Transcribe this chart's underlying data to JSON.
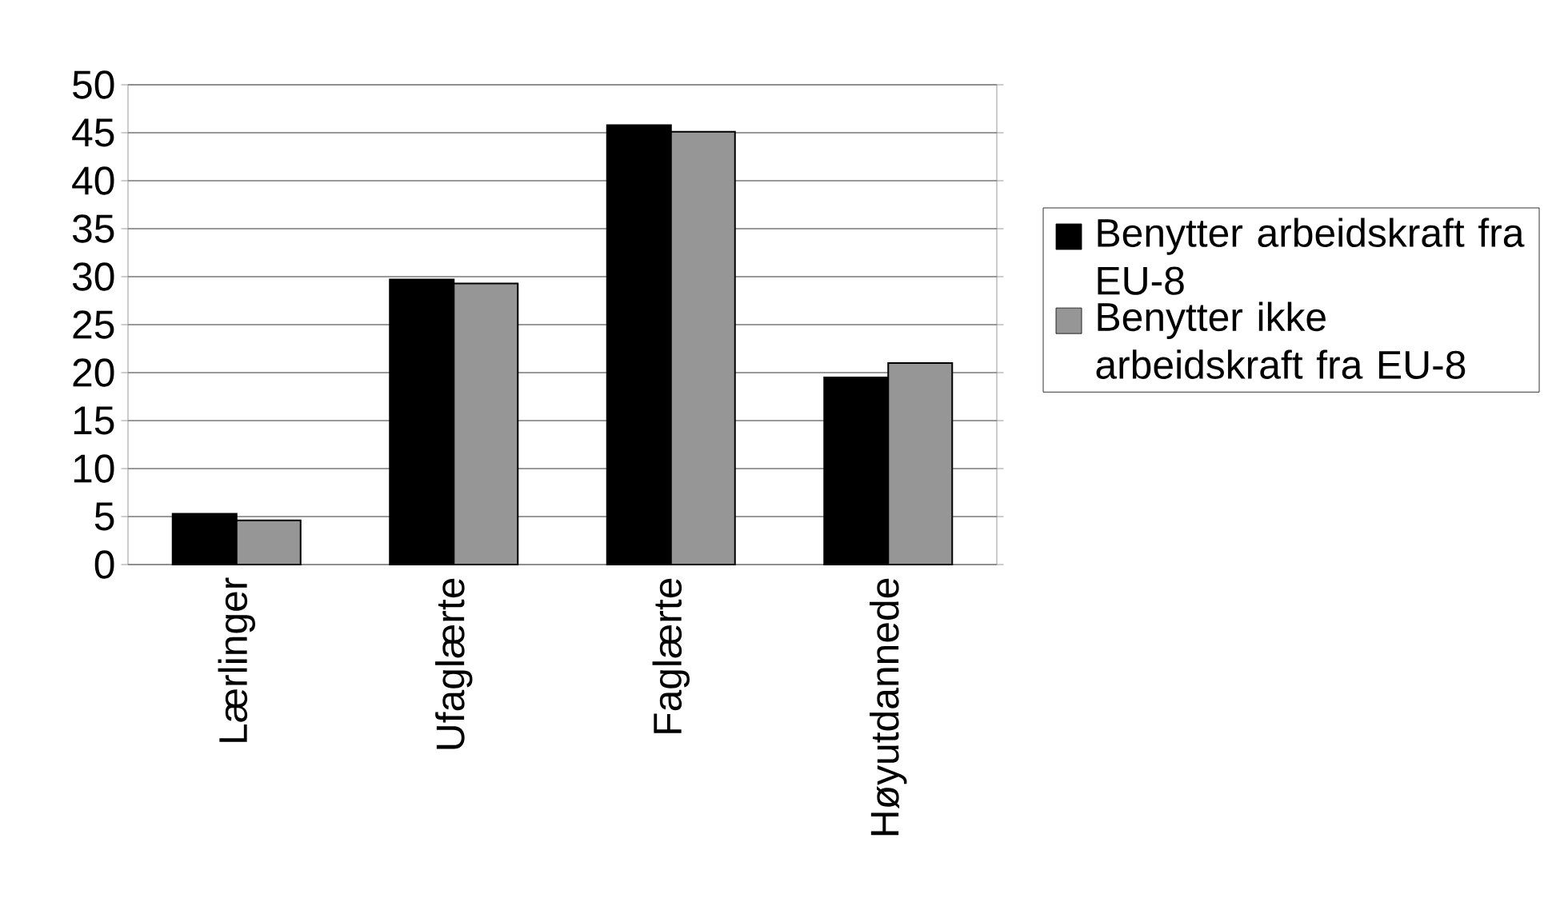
{
  "chart_data": {
    "type": "bar",
    "categories": [
      "Lærlinger",
      "Ufaglærte",
      "Faglærte",
      "Høyutdannede"
    ],
    "series": [
      {
        "name": "Benytter arbeidskraft fra EU-8",
        "color": "#000000",
        "values": [
          5.3,
          29.7,
          45.8,
          19.5
        ]
      },
      {
        "name": "Benytter ikke arbeidskraft fra EU-8",
        "color": "#969696",
        "values": [
          4.6,
          29.3,
          45.1,
          21.0
        ]
      }
    ],
    "ylim": [
      0,
      50
    ],
    "yticks": [
      0,
      5,
      10,
      15,
      20,
      25,
      30,
      35,
      40,
      45,
      50
    ],
    "grid": "y",
    "legend": "right"
  }
}
